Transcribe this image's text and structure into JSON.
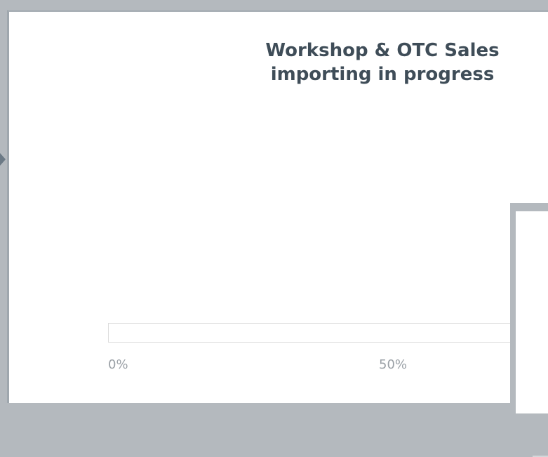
{
  "dialog": {
    "title_line1": "Workshop & OTC Sales",
    "title_line2": "importing in progress"
  },
  "progress": {
    "value_percent": 0,
    "tick_labels": [
      "0%",
      "50%"
    ]
  },
  "colors": {
    "background": "#b4b9be",
    "title_text": "#3f4d58",
    "tick_text": "#9aa0a6"
  },
  "icons": {
    "left_edge": "caret-right-icon"
  }
}
